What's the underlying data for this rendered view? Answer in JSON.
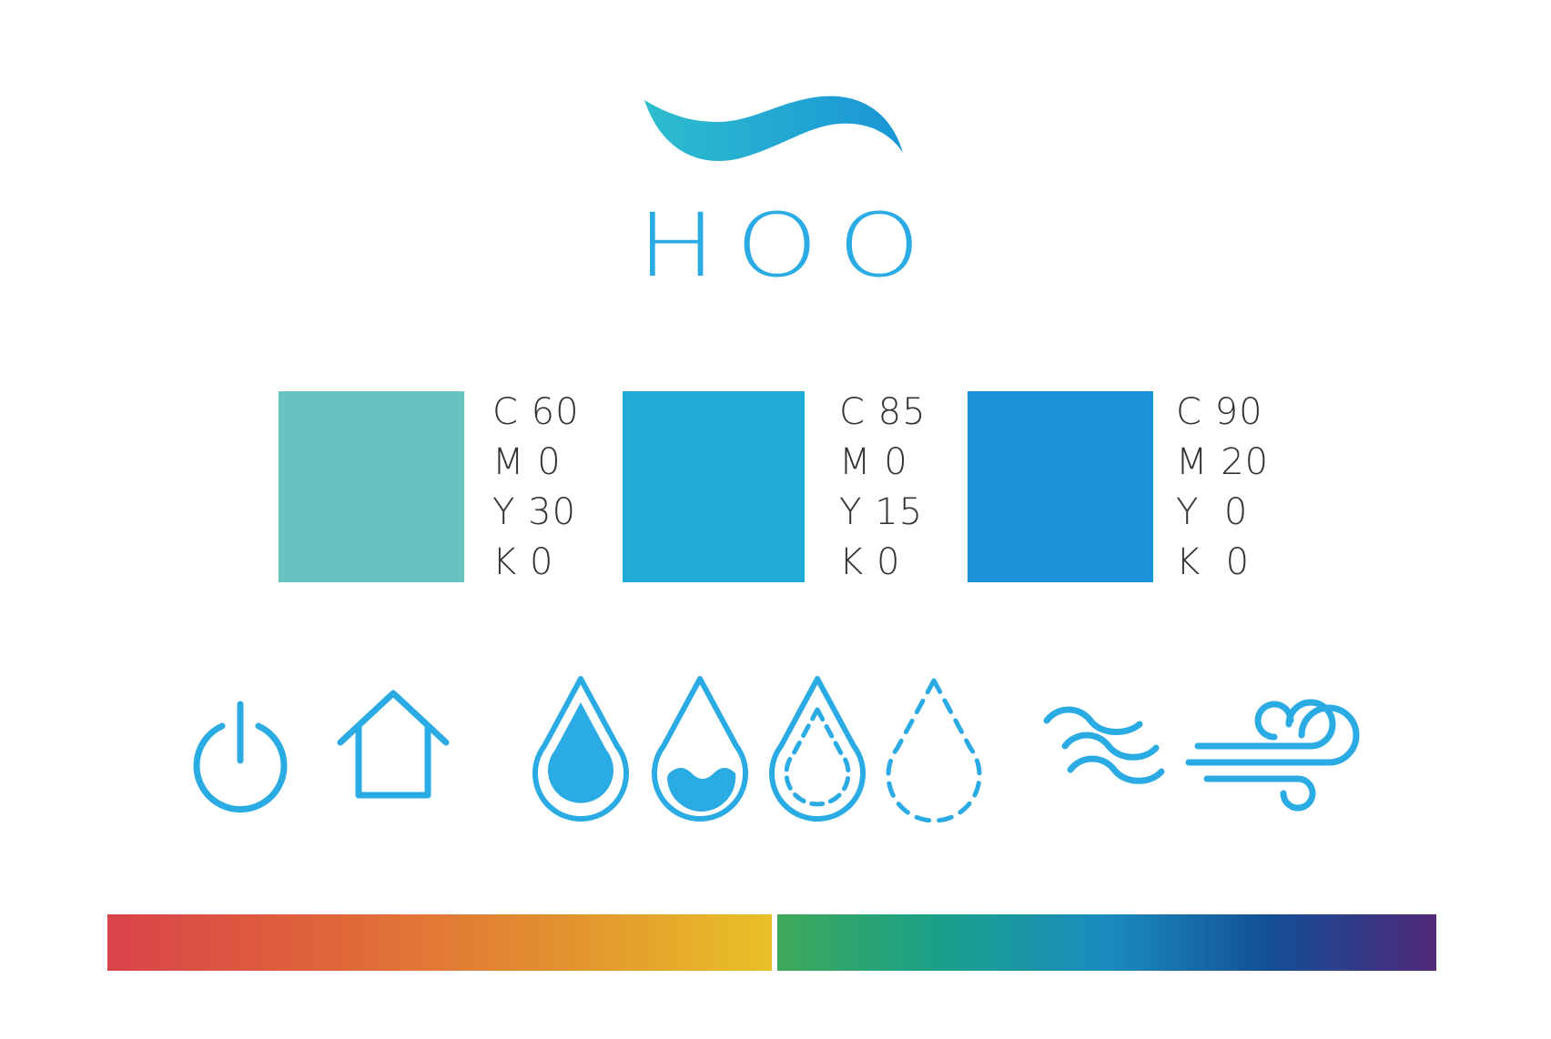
{
  "brand": {
    "name": "HOO",
    "logo_icon": "wave-icon",
    "gradient_colors": [
      "#2dbdce",
      "#1a95d6"
    ],
    "text_color": "#2aabe4"
  },
  "palette": [
    {
      "hex": "#68c3c0",
      "cmyk": [
        "C 60",
        "M 0",
        "Y 30",
        "K 0"
      ]
    },
    {
      "hex": "#20aad6",
      "cmyk": [
        "C 85",
        "M 0",
        "Y 15",
        "K 0"
      ]
    },
    {
      "hex": "#1a93d8",
      "cmyk": [
        "C 90",
        "M 20",
        "Y  0",
        "K  0"
      ]
    }
  ],
  "icons": {
    "color": "#2aabe4",
    "items": [
      "power-icon",
      "home-icon",
      "water-drop-full-icon",
      "water-drop-half-icon",
      "water-drop-low-icon",
      "water-drop-empty-icon",
      "waves-icon",
      "wind-icon"
    ]
  },
  "spectrum": {
    "warm": [
      "#d9434a",
      "#e0653a",
      "#e28f30",
      "#e8c127"
    ],
    "cool": [
      "#3ea95a",
      "#19a08a",
      "#1a8cc0",
      "#134e96",
      "#502878"
    ]
  }
}
